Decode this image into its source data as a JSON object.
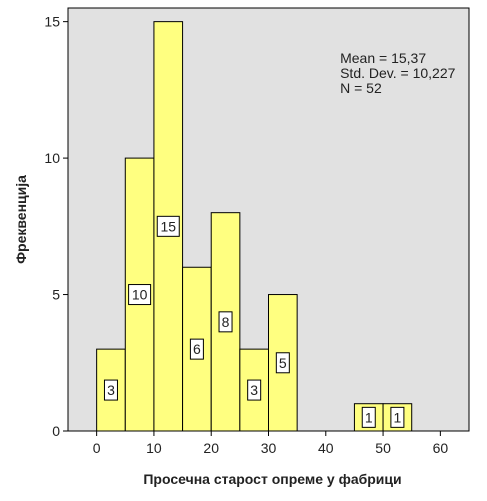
{
  "chart_data": {
    "type": "bar",
    "bins": [
      {
        "start": 0,
        "end": 5,
        "count": 3,
        "label": "3"
      },
      {
        "start": 5,
        "end": 10,
        "count": 10,
        "label": "10"
      },
      {
        "start": 10,
        "end": 15,
        "count": 15,
        "label": "15"
      },
      {
        "start": 15,
        "end": 20,
        "count": 6,
        "label": "6"
      },
      {
        "start": 20,
        "end": 25,
        "count": 8,
        "label": "8"
      },
      {
        "start": 25,
        "end": 30,
        "count": 3,
        "label": "3"
      },
      {
        "start": 30,
        "end": 35,
        "count": 5,
        "label": "5"
      },
      {
        "start": 45,
        "end": 50,
        "count": 1,
        "label": "1"
      },
      {
        "start": 50,
        "end": 55,
        "count": 1,
        "label": "1"
      }
    ],
    "xlabel": "Просечна старост опреме у фабрици",
    "ylabel": "Фреквенција",
    "xlim": [
      -5,
      65
    ],
    "ylim": [
      0,
      15.5
    ],
    "xticks": [
      "0",
      "10",
      "20",
      "30",
      "40",
      "50",
      "60"
    ],
    "yticks": [
      "0",
      "5",
      "10",
      "15"
    ],
    "stats": [
      "Mean = 15,37",
      "Std. Dev. = 10,227",
      "N = 52"
    ],
    "grid": false,
    "colors": {
      "bar_fill": "#ffff80",
      "plot_bg": "#e1e1e1",
      "frame": "#000000"
    }
  }
}
